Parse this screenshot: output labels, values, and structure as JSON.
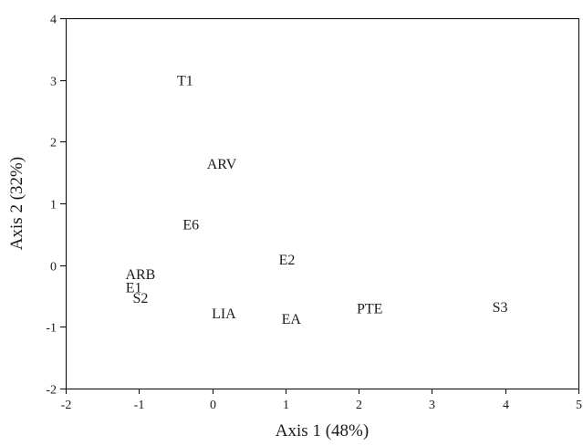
{
  "chart_data": {
    "type": "scatter",
    "xlabel": "Axis 1 (48%)",
    "ylabel": "Axis 2 (32%)",
    "xlim": [
      -2,
      5
    ],
    "ylim": [
      -2,
      4
    ],
    "xticks": [
      "-2",
      "-1",
      "0",
      "1",
      "2",
      "3",
      "4",
      "5"
    ],
    "yticks": [
      "-2",
      "-1",
      "0",
      "1",
      "2",
      "3",
      "4"
    ],
    "grid": false,
    "markers": false,
    "points": [
      {
        "label": "T1",
        "x": -0.37,
        "y": 3.0
      },
      {
        "label": "ARV",
        "x": 0.13,
        "y": 1.65
      },
      {
        "label": "E6",
        "x": -0.29,
        "y": 0.67
      },
      {
        "label": "E2",
        "x": 1.02,
        "y": 0.1
      },
      {
        "label": "ARB",
        "x": -0.98,
        "y": -0.14
      },
      {
        "label": "E1",
        "x": -1.07,
        "y": -0.35
      },
      {
        "label": "S2",
        "x": -0.98,
        "y": -0.52
      },
      {
        "label": "LIA",
        "x": 0.16,
        "y": -0.77
      },
      {
        "label": "EA",
        "x": 1.08,
        "y": -0.86
      },
      {
        "label": "PTE",
        "x": 2.15,
        "y": -0.69
      },
      {
        "label": "S3",
        "x": 3.93,
        "y": -0.67
      }
    ]
  }
}
